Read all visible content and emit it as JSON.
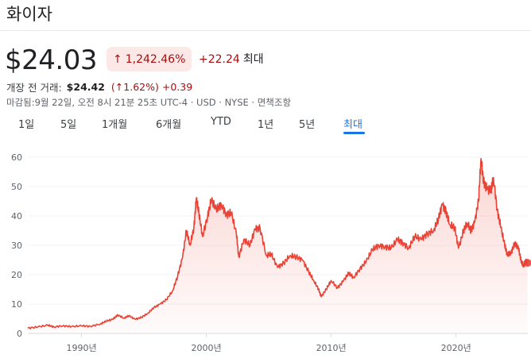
{
  "stock": {
    "name": "화이자",
    "price": "$24.03",
    "change_pct": "1,242.46%",
    "change_abs": "+22.24",
    "period_label": "최대",
    "premarket_label": "개장 전 거래:",
    "premarket_price": "$24.42",
    "premarket_pct": "(↑1.62%)",
    "premarket_abs": "+0.39",
    "meta": "마감됨:9월 22일, 오전 8시 21분 25초 UTC-4 · USD · NYSE · 면책조항"
  },
  "icons": {
    "up_arrow": "↑",
    "arrow_icon_name": "up-arrow-icon"
  },
  "tabs": [
    "1일",
    "5일",
    "1개월",
    "6개월",
    "YTD",
    "1년",
    "5년",
    "최대"
  ],
  "active_tab": "최대",
  "colors": {
    "negative_text": "#a50e0e",
    "badge_bg": "#fce8e6",
    "line": "#ea4335",
    "active_tab": "#1a73e8",
    "grid": "#f1f3f4"
  },
  "chart_data": {
    "type": "area",
    "ylim": [
      0,
      60
    ],
    "yticks": [
      0,
      10,
      20,
      30,
      40,
      50,
      60
    ],
    "xticks": [
      {
        "value": 1990,
        "label": "1990년"
      },
      {
        "value": 2000,
        "label": "2000년"
      },
      {
        "value": 2010,
        "label": "2010년"
      },
      {
        "value": 2020,
        "label": "2020년"
      }
    ],
    "xlim": [
      1985.7,
      2025.75
    ],
    "series": [
      {
        "points": [
          [
            1985.7,
            1.8
          ],
          [
            1986.5,
            2.2
          ],
          [
            1987.3,
            2.8
          ],
          [
            1987.8,
            2.2
          ],
          [
            1988.5,
            2.6
          ],
          [
            1989.2,
            2.3
          ],
          [
            1990.0,
            2.6
          ],
          [
            1990.7,
            2.4
          ],
          [
            1991.5,
            3.2
          ],
          [
            1992.0,
            4.2
          ],
          [
            1992.5,
            4.8
          ],
          [
            1992.9,
            6.3
          ],
          [
            1993.4,
            5.2
          ],
          [
            1993.8,
            6.0
          ],
          [
            1994.3,
            4.8
          ],
          [
            1994.8,
            5.5
          ],
          [
            1995.3,
            6.8
          ],
          [
            1995.8,
            8.8
          ],
          [
            1996.3,
            10.0
          ],
          [
            1996.8,
            11.5
          ],
          [
            1997.3,
            14.5
          ],
          [
            1997.7,
            19.5
          ],
          [
            1998.1,
            26.0
          ],
          [
            1998.4,
            35.0
          ],
          [
            1998.7,
            30.0
          ],
          [
            1999.0,
            36.0
          ],
          [
            1999.2,
            46.0
          ],
          [
            1999.4,
            41.0
          ],
          [
            1999.7,
            33.0
          ],
          [
            2000.1,
            40.0
          ],
          [
            2000.4,
            45.5
          ],
          [
            2000.8,
            42.0
          ],
          [
            2001.2,
            44.0
          ],
          [
            2001.6,
            40.5
          ],
          [
            2002.0,
            41.0
          ],
          [
            2002.4,
            34.0
          ],
          [
            2002.6,
            26.0
          ],
          [
            2003.0,
            32.0
          ],
          [
            2003.5,
            30.0
          ],
          [
            2003.9,
            35.5
          ],
          [
            2004.3,
            36.0
          ],
          [
            2004.8,
            26.5
          ],
          [
            2005.2,
            27.0
          ],
          [
            2005.7,
            22.5
          ],
          [
            2006.2,
            24.0
          ],
          [
            2006.7,
            26.5
          ],
          [
            2007.2,
            26.0
          ],
          [
            2007.7,
            25.0
          ],
          [
            2008.2,
            21.0
          ],
          [
            2008.6,
            18.0
          ],
          [
            2009.0,
            15.0
          ],
          [
            2009.2,
            12.5
          ],
          [
            2009.6,
            15.0
          ],
          [
            2010.0,
            18.0
          ],
          [
            2010.5,
            15.5
          ],
          [
            2011.0,
            18.0
          ],
          [
            2011.4,
            20.5
          ],
          [
            2011.8,
            19.0
          ],
          [
            2012.3,
            22.0
          ],
          [
            2012.8,
            24.5
          ],
          [
            2013.3,
            28.5
          ],
          [
            2013.8,
            30.0
          ],
          [
            2014.3,
            29.5
          ],
          [
            2014.8,
            29.0
          ],
          [
            2015.3,
            32.0
          ],
          [
            2015.7,
            31.0
          ],
          [
            2016.2,
            29.0
          ],
          [
            2016.7,
            33.0
          ],
          [
            2017.2,
            32.0
          ],
          [
            2017.7,
            34.0
          ],
          [
            2018.2,
            35.0
          ],
          [
            2018.6,
            39.0
          ],
          [
            2018.9,
            44.0
          ],
          [
            2019.2,
            41.5
          ],
          [
            2019.5,
            37.0
          ],
          [
            2019.9,
            36.0
          ],
          [
            2020.2,
            29.0
          ],
          [
            2020.6,
            35.0
          ],
          [
            2020.9,
            37.5
          ],
          [
            2021.2,
            35.0
          ],
          [
            2021.5,
            38.0
          ],
          [
            2021.8,
            45.0
          ],
          [
            2022.0,
            59.5
          ],
          [
            2022.2,
            52.0
          ],
          [
            2022.5,
            49.0
          ],
          [
            2022.8,
            48.5
          ],
          [
            2023.0,
            53.0
          ],
          [
            2023.3,
            42.0
          ],
          [
            2023.6,
            36.0
          ],
          [
            2023.9,
            30.0
          ],
          [
            2024.1,
            27.0
          ],
          [
            2024.4,
            27.5
          ],
          [
            2024.7,
            30.5
          ],
          [
            2025.0,
            29.0
          ],
          [
            2025.2,
            25.0
          ],
          [
            2025.4,
            23.0
          ],
          [
            2025.6,
            24.5
          ],
          [
            2025.72,
            24.03
          ]
        ]
      }
    ]
  }
}
